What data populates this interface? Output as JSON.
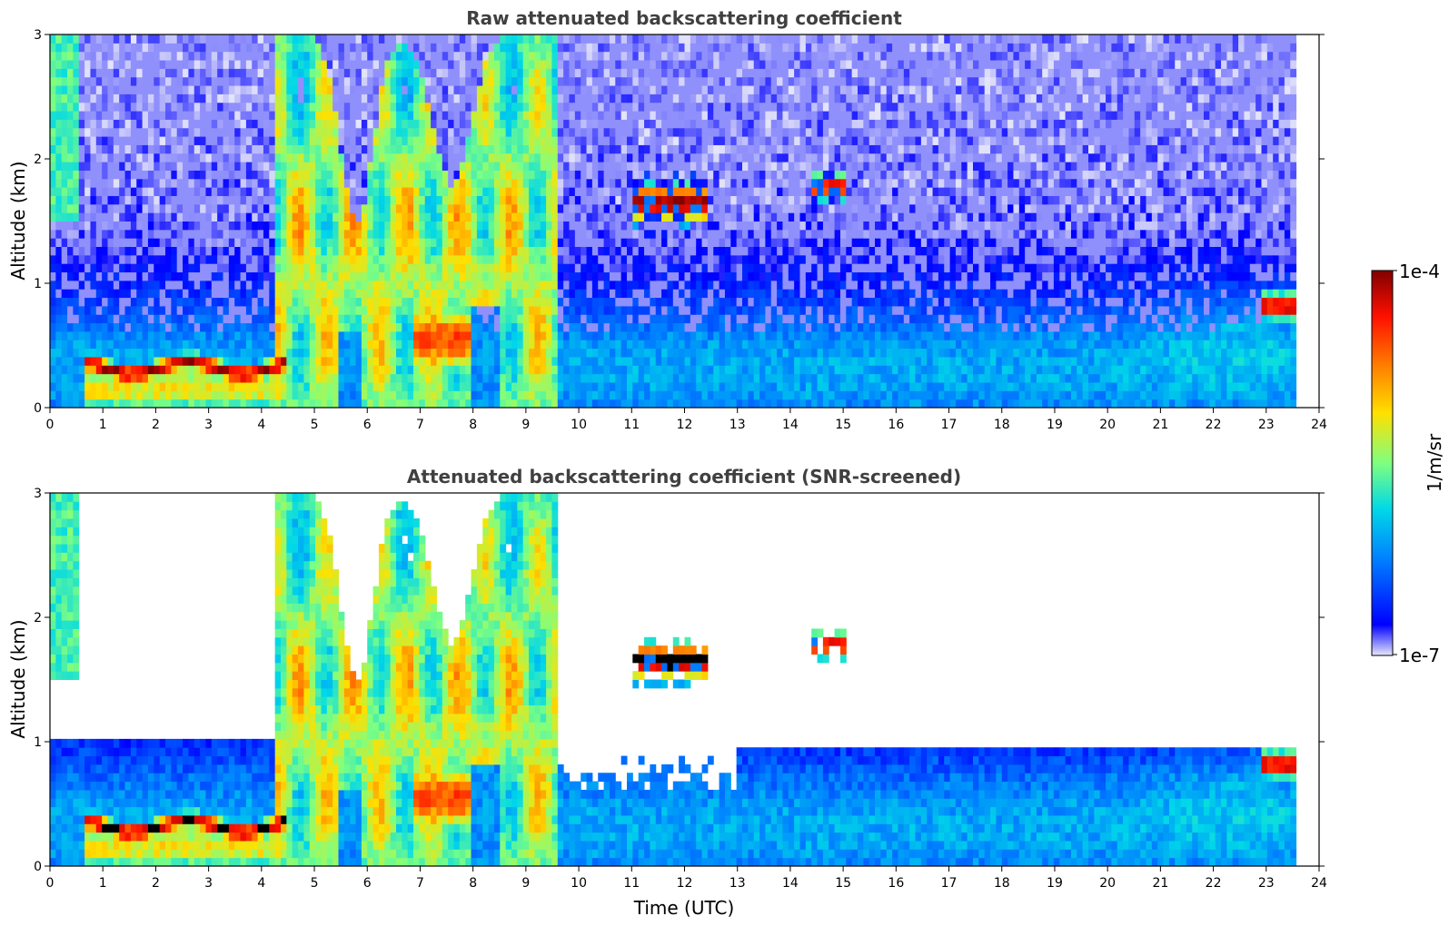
{
  "chart_data": [
    {
      "type": "heatmap",
      "title": "Raw attenuated backscattering coefficient",
      "xlabel": "",
      "ylabel": "Altitude (km)",
      "xlim": [
        0,
        24
      ],
      "ylim": [
        0,
        3
      ],
      "x_ticks": [
        "0",
        "1",
        "2",
        "3",
        "4",
        "5",
        "6",
        "7",
        "8",
        "9",
        "10",
        "11",
        "12",
        "13",
        "14",
        "15",
        "16",
        "17",
        "18",
        "19",
        "20",
        "21",
        "22",
        "23",
        "24"
      ],
      "y_ticks": [
        "0",
        "1",
        "2",
        "3"
      ],
      "data_end_time": 23.6,
      "screened": false
    },
    {
      "type": "heatmap",
      "title": "Attenuated backscattering coefficient (SNR-screened)",
      "xlabel": "Time (UTC)",
      "ylabel": "Altitude (km)",
      "xlim": [
        0,
        24
      ],
      "ylim": [
        0,
        3
      ],
      "x_ticks": [
        "0",
        "1",
        "2",
        "3",
        "4",
        "5",
        "6",
        "7",
        "8",
        "9",
        "10",
        "11",
        "12",
        "13",
        "14",
        "15",
        "16",
        "17",
        "18",
        "19",
        "20",
        "21",
        "22",
        "23",
        "24"
      ],
      "y_ticks": [
        "0",
        "1",
        "2",
        "3"
      ],
      "data_end_time": 23.6,
      "screened": true
    }
  ],
  "colorbar": {
    "label": "1/m/sr",
    "max_label": "1e-4",
    "min_label": "1e-7",
    "colormap": [
      "#e6e6fa",
      "#0000ff",
      "#0080ff",
      "#00d8e8",
      "#7fff80",
      "#ffe000",
      "#ff8000",
      "#ff1000",
      "#800000"
    ]
  }
}
